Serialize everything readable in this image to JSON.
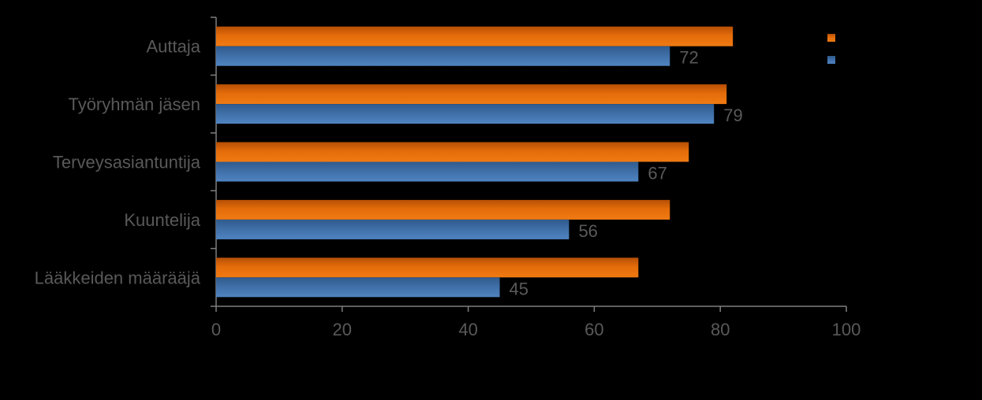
{
  "chart_data": {
    "type": "bar",
    "orientation": "horizontal",
    "categories": [
      "Auttaja",
      "Työryhmän jäsen",
      "Terveysasiantuntija",
      "Kuuntelija",
      "Lääkkeiden määrääjä"
    ],
    "series": [
      {
        "color": "#E46C0A",
        "values": [
          82,
          81,
          75,
          72,
          67
        ]
      },
      {
        "color": "#4A7EBB",
        "values": [
          72,
          79,
          67,
          56,
          45
        ]
      }
    ],
    "data_labels_series_index": 1,
    "xlim": [
      0,
      100
    ],
    "xticks": [
      "0",
      "20",
      "40",
      "60",
      "80",
      "100"
    ],
    "xtick_values": [
      0,
      20,
      40,
      60,
      80,
      100
    ],
    "legend": {
      "position": "top-right",
      "text_visible": false
    },
    "grid": false,
    "title": "",
    "xlabel": "",
    "ylabel": ""
  },
  "colors": {
    "background": "#000000",
    "axis": "#7F7F7F",
    "text": "#595959"
  }
}
